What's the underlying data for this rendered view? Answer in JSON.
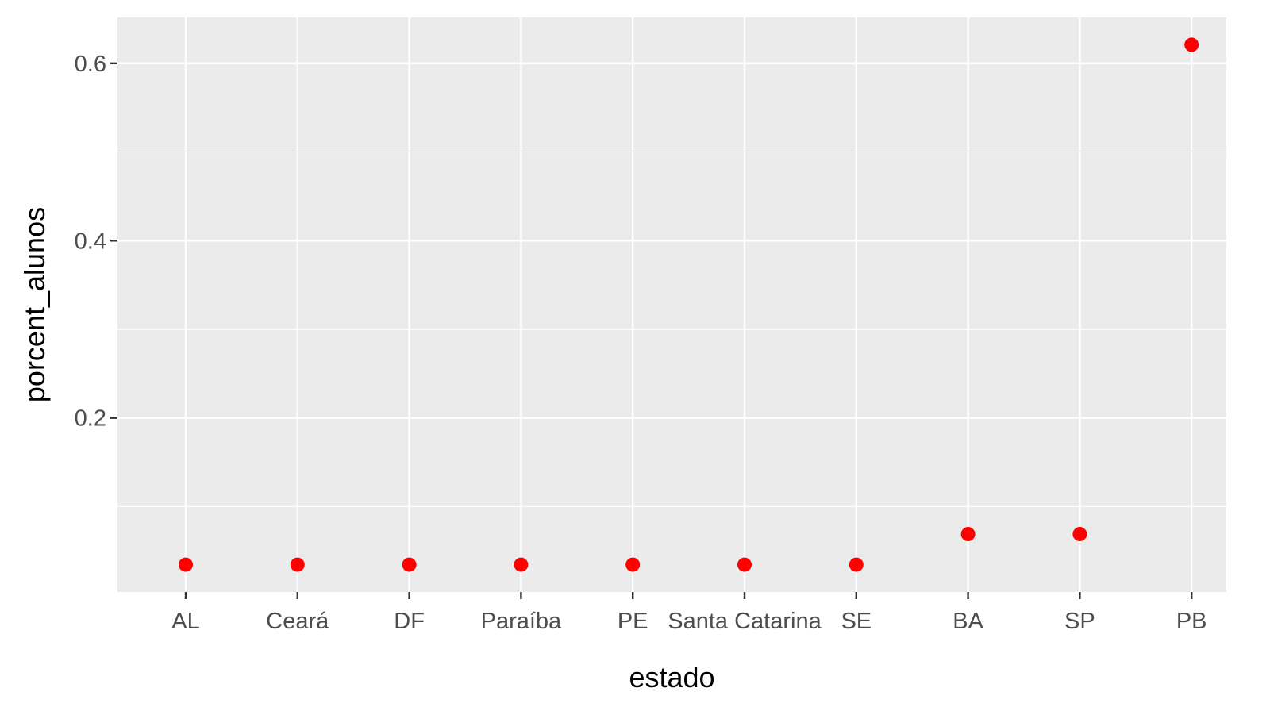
{
  "chart_data": {
    "type": "scatter",
    "xlabel": "estado",
    "ylabel": "porcent_alunos",
    "categories": [
      "AL",
      "Ceará",
      "DF",
      "Paraíba",
      "PE",
      "Santa Catarina",
      "SE",
      "BA",
      "SP",
      "PB"
    ],
    "values": [
      0.0345,
      0.0345,
      0.0345,
      0.0345,
      0.0345,
      0.0345,
      0.0345,
      0.069,
      0.069,
      0.621
    ],
    "ylim": [
      0.0037,
      0.6518
    ],
    "y_ticks": [
      0.2,
      0.4,
      0.6
    ],
    "y_tick_labels": [
      "0.2",
      "0.4",
      "0.6"
    ],
    "grid": true,
    "colors": {
      "panel": "#EBEBEB",
      "grid": "#FFFFFF",
      "point": "#FF0000",
      "tick_text": "#4D4D4D",
      "axis_title": "#000000"
    }
  }
}
